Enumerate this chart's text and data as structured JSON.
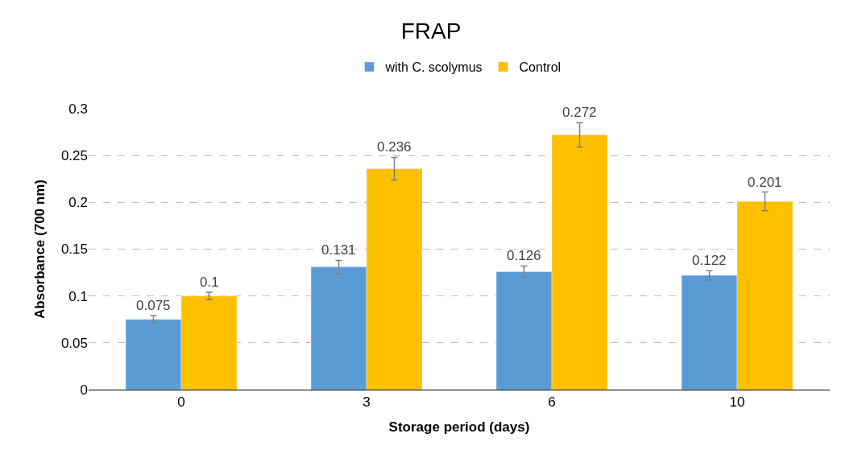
{
  "chart_data": {
    "type": "bar",
    "title": "FRAP",
    "xlabel": "Storage period (days)",
    "ylabel": "Absorbance (700 nm)",
    "categories": [
      "0",
      "3",
      "6",
      "10"
    ],
    "series": [
      {
        "name": "with C. scolymus",
        "color": "#5b9bd5",
        "values": [
          0.075,
          0.131,
          0.126,
          0.122
        ],
        "errors": [
          0.004,
          0.007,
          0.006,
          0.005
        ]
      },
      {
        "name": "Control",
        "color": "#ffc000",
        "values": [
          0.1,
          0.236,
          0.272,
          0.201
        ],
        "errors": [
          0.004,
          0.012,
          0.013,
          0.01
        ]
      }
    ],
    "ylim": [
      0,
      0.3
    ],
    "yticks": [
      0,
      0.05,
      0.1,
      0.15,
      0.2,
      0.25,
      0.3
    ],
    "grid": "y",
    "legend": "top",
    "data_labels": true
  }
}
